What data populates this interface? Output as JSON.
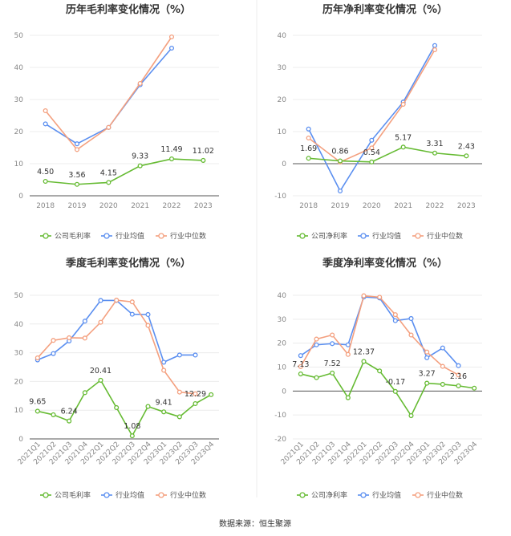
{
  "source": "数据来源：恒生聚源",
  "colors": {
    "company": "#66bb33",
    "industry_avg": "#5b8ff0",
    "industry_median": "#f4a07f"
  },
  "chart_data": [
    {
      "id": "annual-gross",
      "type": "line",
      "title": "历年毛利率变化情况（%）",
      "categories": [
        "2018",
        "2019",
        "2020",
        "2021",
        "2022",
        "2023"
      ],
      "ylim": [
        0,
        50
      ],
      "yticks": [
        0,
        10,
        20,
        30,
        40,
        50
      ],
      "xlabel_rotate": false,
      "series": [
        {
          "name": "公司毛利率",
          "color": "#66bb33",
          "values": [
            4.5,
            3.56,
            4.15,
            9.33,
            11.49,
            11.02
          ],
          "labels": [
            "4.50",
            "3.56",
            "4.15",
            "9.33",
            "11.49",
            "11.02"
          ]
        },
        {
          "name": "行业均值",
          "color": "#5b8ff0",
          "values": [
            22.4,
            16.2,
            21.3,
            34.6,
            46.0,
            null
          ]
        },
        {
          "name": "行业中位数",
          "color": "#f4a07f",
          "values": [
            26.5,
            14.4,
            21.3,
            35.0,
            49.5,
            null
          ]
        }
      ]
    },
    {
      "id": "annual-net",
      "type": "line",
      "title": "历年净利率变化情况（%）",
      "categories": [
        "2018",
        "2019",
        "2020",
        "2021",
        "2022",
        "2023"
      ],
      "ylim": [
        -10,
        40
      ],
      "yticks": [
        -10,
        0,
        10,
        20,
        30,
        40
      ],
      "xlabel_rotate": false,
      "series": [
        {
          "name": "公司净利率",
          "color": "#66bb33",
          "values": [
            1.69,
            0.86,
            0.54,
            5.17,
            3.31,
            2.43
          ],
          "labels": [
            "1.69",
            "0.86",
            "0.54",
            "5.17",
            "3.31",
            "2.43"
          ]
        },
        {
          "name": "行业均值",
          "color": "#5b8ff0",
          "values": [
            10.8,
            -8.5,
            7.3,
            19.2,
            36.8,
            null
          ]
        },
        {
          "name": "行业中位数",
          "color": "#f4a07f",
          "values": [
            8.0,
            0.5,
            4.9,
            18.5,
            35.5,
            null
          ]
        }
      ]
    },
    {
      "id": "quarterly-gross",
      "type": "line",
      "title": "季度毛利率变化情况（%）",
      "categories": [
        "2021Q1",
        "2021Q2",
        "2021Q3",
        "2021Q4",
        "2022Q1",
        "2022Q2",
        "2022Q3",
        "2022Q4",
        "2023Q1",
        "2023Q2",
        "2023Q3",
        "2023Q4"
      ],
      "ylim": [
        0,
        50
      ],
      "yticks": [
        0,
        10,
        20,
        30,
        40,
        50
      ],
      "xlabel_rotate": true,
      "series": [
        {
          "name": "公司毛利率",
          "color": "#66bb33",
          "values": [
            9.65,
            8.4,
            6.24,
            16.1,
            20.41,
            10.9,
            1.08,
            11.3,
            9.41,
            7.7,
            12.29,
            15.4
          ],
          "labels": [
            "9.65",
            "",
            "6.24",
            "",
            "20.41",
            "",
            "1.08",
            "",
            "9.41",
            "",
            "12.29",
            ""
          ]
        },
        {
          "name": "行业均值",
          "color": "#5b8ff0",
          "values": [
            27.5,
            29.7,
            34.1,
            41.0,
            48.2,
            48.2,
            43.4,
            43.3,
            26.7,
            29.2,
            29.2,
            null
          ]
        },
        {
          "name": "行业中位数",
          "color": "#f4a07f",
          "values": [
            28.2,
            34.3,
            35.2,
            35.1,
            40.6,
            48.3,
            47.7,
            39.5,
            23.9,
            16.3,
            15.7,
            null
          ]
        }
      ]
    },
    {
      "id": "quarterly-net",
      "type": "line",
      "title": "季度净利率变化情况（%）",
      "categories": [
        "2021Q1",
        "2021Q2",
        "2021Q3",
        "2021Q4",
        "2022Q1",
        "2022Q2",
        "2022Q3",
        "2022Q4",
        "2023Q1",
        "2023Q2",
        "2023Q3",
        "2023Q4"
      ],
      "ylim": [
        -20,
        40
      ],
      "yticks": [
        -20,
        -10,
        0,
        10,
        20,
        30,
        40
      ],
      "xlabel_rotate": true,
      "series": [
        {
          "name": "公司净利率",
          "color": "#66bb33",
          "values": [
            7.13,
            5.6,
            7.52,
            -2.8,
            12.37,
            8.4,
            -0.17,
            -10.3,
            3.27,
            2.8,
            2.16,
            1.2
          ],
          "labels": [
            "7.13",
            "",
            "7.52",
            "",
            "12.37",
            "",
            "-0.17",
            "",
            "3.27",
            "",
            "2.16",
            ""
          ]
        },
        {
          "name": "行业均值",
          "color": "#5b8ff0",
          "values": [
            14.8,
            19.3,
            19.8,
            19.3,
            39.3,
            38.9,
            29.4,
            30.3,
            13.9,
            18.0,
            10.6,
            null
          ]
        },
        {
          "name": "行业中位数",
          "color": "#f4a07f",
          "values": [
            10.2,
            21.7,
            23.4,
            15.3,
            39.8,
            39.2,
            31.9,
            23.4,
            16.3,
            10.3,
            6.7,
            null
          ]
        }
      ]
    }
  ]
}
